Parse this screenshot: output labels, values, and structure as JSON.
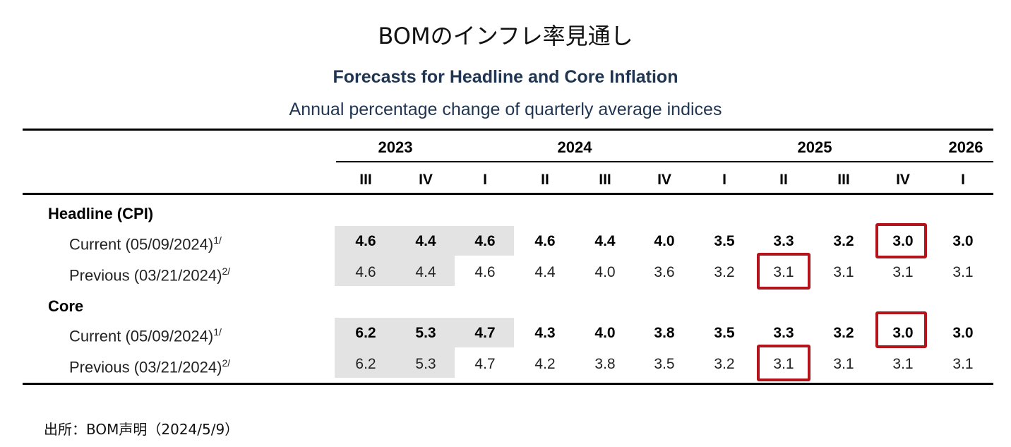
{
  "page_title": "BOMのインフレ率見通し",
  "table": {
    "title": "Forecasts for Headline and Core Inflation",
    "subtitle": "Annual percentage change of quarterly average indices",
    "years": [
      "2023",
      "2024",
      "2025",
      "2026"
    ],
    "quarters": [
      "III",
      "IV",
      "I",
      "II",
      "III",
      "IV",
      "I",
      "II",
      "III",
      "IV",
      "I"
    ],
    "headline": {
      "label": "Headline (CPI)",
      "current": {
        "label": "Current (05/09/2024)",
        "note": "1/",
        "values": [
          "4.6",
          "4.4",
          "4.6",
          "4.6",
          "4.4",
          "4.0",
          "3.5",
          "3.3",
          "3.2",
          "3.0",
          "3.0"
        ]
      },
      "previous": {
        "label": "Previous (03/21/2024)",
        "note": "2/",
        "values": [
          "4.6",
          "4.4",
          "4.6",
          "4.4",
          "4.0",
          "3.6",
          "3.2",
          "3.1",
          "3.1",
          "3.1",
          "3.1"
        ]
      }
    },
    "core": {
      "label": "Core",
      "current": {
        "label": "Current (05/09/2024)",
        "note": "1/",
        "values": [
          "6.2",
          "5.3",
          "4.7",
          "4.3",
          "4.0",
          "3.8",
          "3.5",
          "3.3",
          "3.2",
          "3.0",
          "3.0"
        ]
      },
      "previous": {
        "label": "Previous (03/21/2024)",
        "note": "2/",
        "values": [
          "6.2",
          "5.3",
          "4.7",
          "4.2",
          "3.8",
          "3.5",
          "3.2",
          "3.1",
          "3.1",
          "3.1",
          "3.1"
        ]
      }
    },
    "highlight_color": "#b3141b",
    "shade_color": "#e3e3e3"
  },
  "source": "出所：BOM声明（2024/5/9）"
}
